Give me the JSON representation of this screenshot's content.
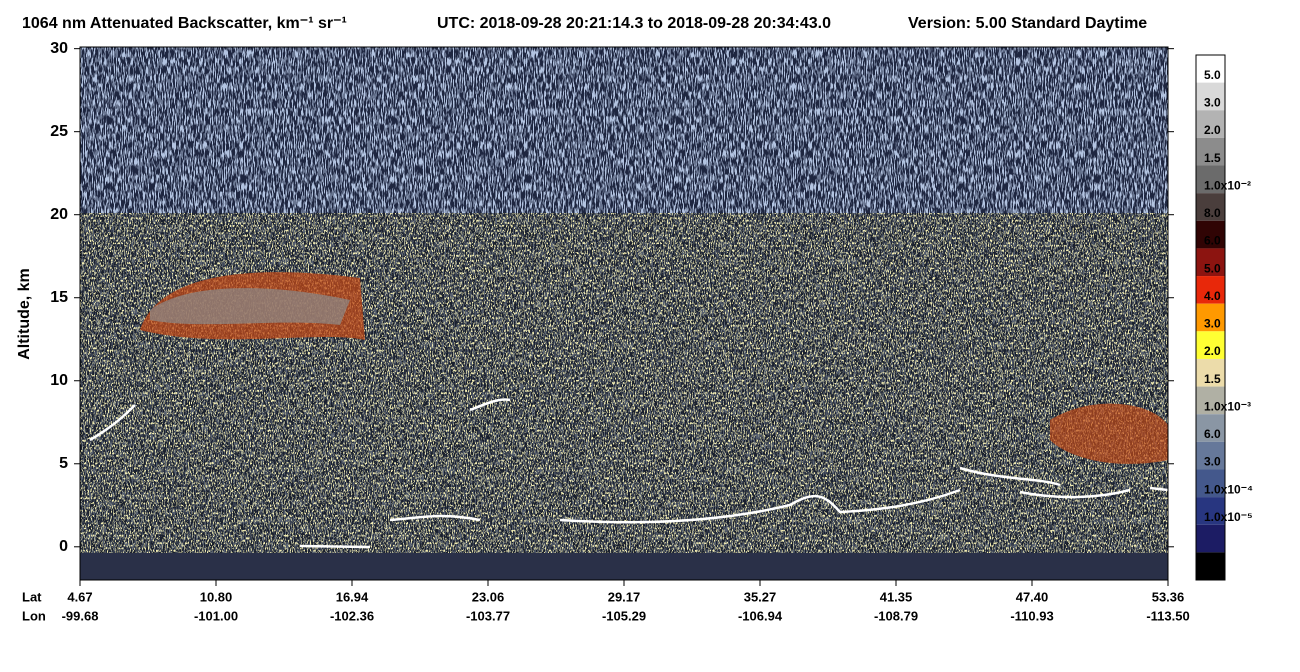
{
  "chart_data": {
    "type": "curtain",
    "title": "1064 nm Attenuated Backscatter, km⁻¹ sr⁻¹",
    "utc": "UTC:  2018-09-28 20:21:14.3  to  2018-09-28 20:34:43.0",
    "version": "Version: 5.00  Standard  Daytime",
    "ylabel": "Altitude, km",
    "ylim": [
      -2,
      30.1
    ],
    "yticks": [
      0,
      5,
      10,
      15,
      20,
      25,
      30
    ],
    "x_row_names": [
      "Lat",
      "Lon"
    ],
    "lat": [
      "4.67",
      "10.80",
      "16.94",
      "23.06",
      "29.17",
      "35.27",
      "41.35",
      "47.40",
      "53.36"
    ],
    "lon": [
      "-99.68",
      "-101.00",
      "-102.36",
      "-103.77",
      "-105.29",
      "-106.94",
      "-108.79",
      "-110.93",
      "-113.50"
    ],
    "colorbar": {
      "labels": [
        "5.0",
        "3.0",
        "2.0",
        "1.5",
        "1.0x10⁻²",
        "8.0",
        "6.0",
        "5.0",
        "4.0",
        "3.0",
        "2.0",
        "1.5",
        "1.0x10⁻³",
        "6.0",
        "3.0",
        "1.0x10⁻⁴",
        "1.0x10⁻⁵"
      ],
      "colors": [
        "#ffffff",
        "#d9d9d9",
        "#b3b3b3",
        "#8c8c8c",
        "#6b6b6b",
        "#4a3e3c",
        "#300404",
        "#8c1410",
        "#e8280a",
        "#ff9900",
        "#ffff33",
        "#ecdcaa",
        "#b0b0a4",
        "#8a96a4",
        "#66789a",
        "#44588c",
        "#283680",
        "#1c1c64",
        "#000000"
      ]
    }
  }
}
